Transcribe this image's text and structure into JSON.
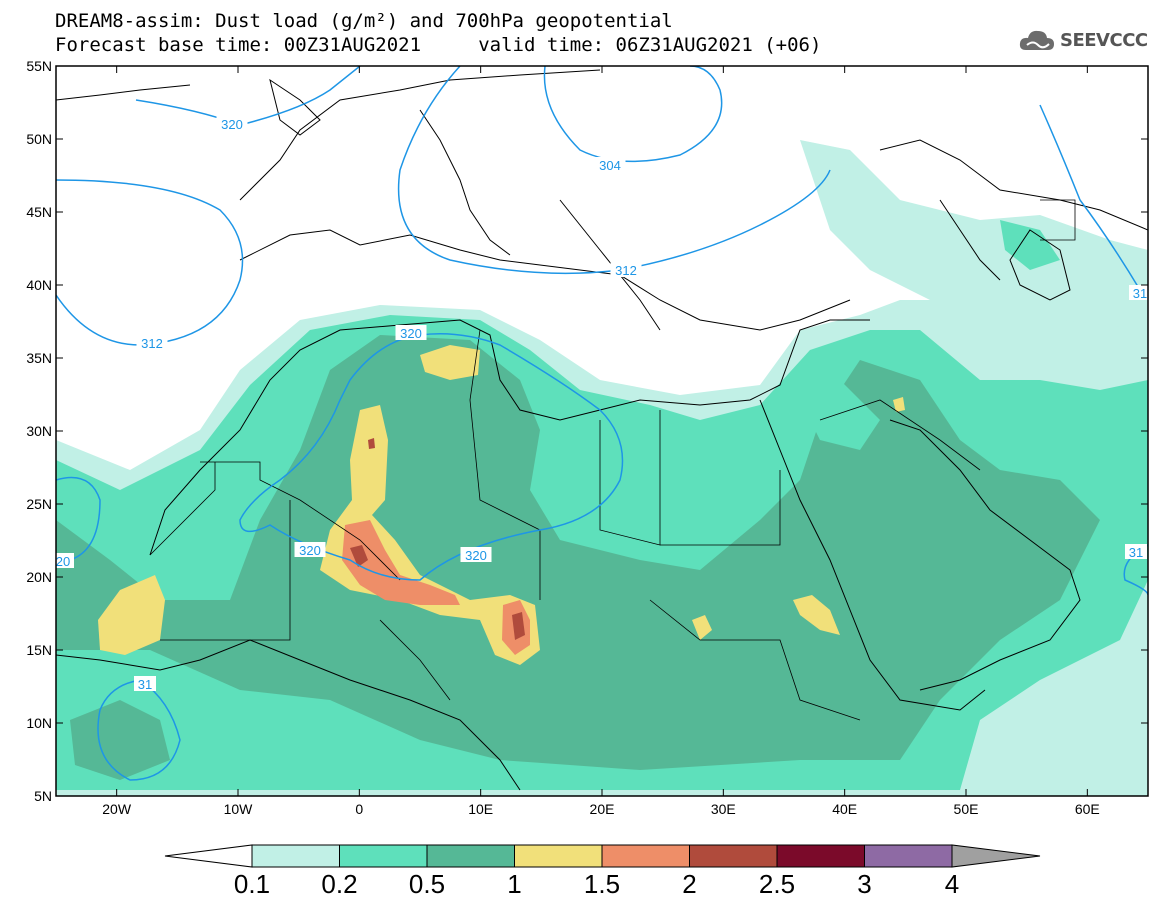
{
  "title": {
    "line1": "DREAM8-assim: Dust load (g/m²) and 700hPa geopotential",
    "line2": "Forecast base time: 00Z31AUG2021     valid time: 06Z31AUG2021 (+06)"
  },
  "logo": {
    "text": "SEEVCCC",
    "icon": "cloud-icon"
  },
  "map": {
    "lat_labels": [
      "55N",
      "50N",
      "45N",
      "40N",
      "35N",
      "30N",
      "25N",
      "20N",
      "15N",
      "10N",
      "5N"
    ],
    "lon_labels": [
      "20W",
      "10W",
      "0",
      "10E",
      "20E",
      "30E",
      "40E",
      "50E",
      "60E"
    ],
    "lat_range": [
      5,
      55
    ],
    "lon_range": [
      -25,
      65
    ],
    "contour_labels": [
      "320",
      "304",
      "312",
      "312",
      "320",
      "320",
      "320",
      "31",
      "31",
      "31",
      "20"
    ]
  },
  "colorbar": {
    "thresholds": [
      "0.1",
      "0.2",
      "0.5",
      "1",
      "1.5",
      "2",
      "2.5",
      "3",
      "4"
    ],
    "colors": [
      "#c1f0e6",
      "#5ee0bb",
      "#55b896",
      "#f1e07a",
      "#ee8e68",
      "#b04b3c",
      "#7b0a2a",
      "#8e6aa4"
    ],
    "under_color": "#ffffff",
    "over_color": "#a0a0a0"
  }
}
